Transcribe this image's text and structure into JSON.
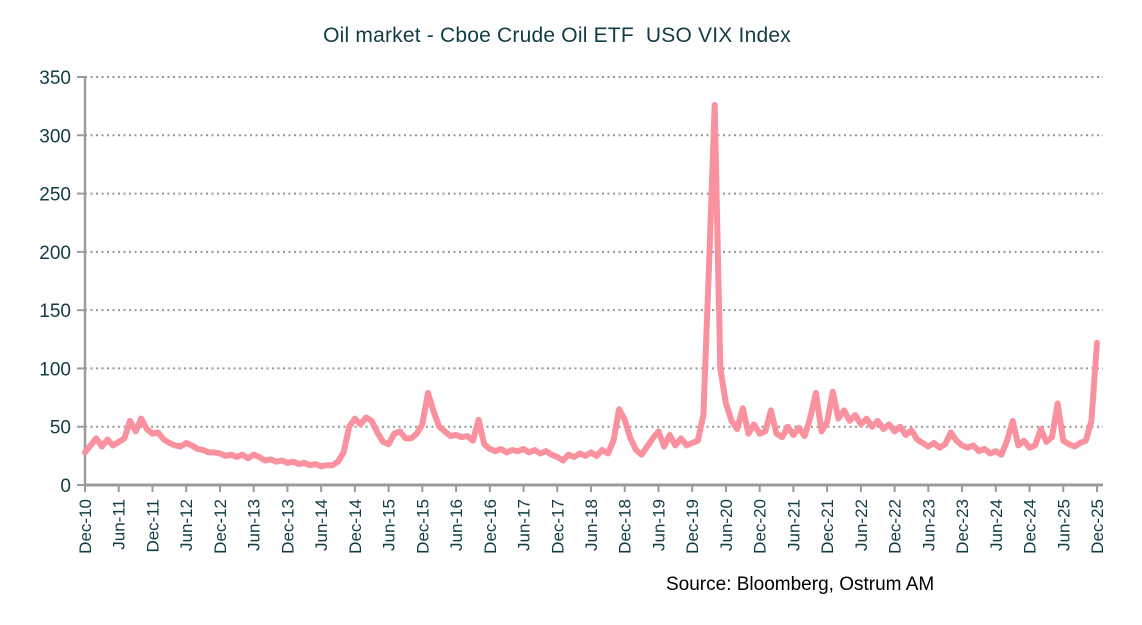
{
  "title": "Oil market - Cboe Crude Oil ETF  USO VIX Index",
  "source": "Source: Bloomberg, Ostrum AM",
  "colors": {
    "background": "#FFFFFF",
    "line": "#F9919F",
    "title_text": "#113C46",
    "axis_text": "#113C46",
    "grid": "#969696",
    "axis": "#9B9B9B",
    "source_text": "#000000"
  },
  "chart_data": {
    "type": "line",
    "title": "Oil market - Cboe Crude Oil ETF USO VIX Index",
    "xlabel": "",
    "ylabel": "",
    "ylim": [
      0,
      350
    ],
    "y_ticks": [
      0,
      50,
      100,
      150,
      200,
      250,
      300,
      350
    ],
    "grid": "horizontal dotted",
    "legend": "none",
    "x_tick_labels": [
      "Dec-10",
      "Jun-11",
      "Dec-11",
      "Jun-12",
      "Dec-12",
      "Jun-13",
      "Dec-13",
      "Jun-14",
      "Dec-14",
      "Jun-15",
      "Dec-15",
      "Jun-16",
      "Dec-16",
      "Jun-17",
      "Dec-17",
      "Jun-18",
      "Dec-18",
      "Jun-19",
      "Dec-19",
      "Jun-20",
      "Dec-20",
      "Jun-21",
      "Dec-21",
      "Jun-22",
      "Dec-22",
      "Jun-23",
      "Dec-23",
      "Jun-24",
      "Dec-24",
      "Jun-25",
      "Dec-25"
    ],
    "x_unit": "monthly samples from Dec-2010 to Dec-2025",
    "series": [
      {
        "name": "Cboe Crude Oil ETF USO VIX Index",
        "x_start": "Dec-2010",
        "x_step_months": 1,
        "values": [
          28,
          34,
          40,
          33,
          39,
          34,
          37,
          40,
          55,
          46,
          57,
          48,
          44,
          45,
          39,
          36,
          34,
          33,
          36,
          34,
          31,
          30,
          28,
          28,
          27,
          25,
          26,
          24,
          26,
          23,
          26,
          24,
          21,
          22,
          20,
          21,
          19,
          20,
          18,
          19,
          17,
          18,
          16,
          17,
          17,
          20,
          28,
          50,
          57,
          52,
          58,
          55,
          45,
          37,
          35,
          44,
          46,
          40,
          40,
          44,
          52,
          79,
          63,
          50,
          46,
          42,
          43,
          41,
          42,
          38,
          56,
          35,
          31,
          29,
          31,
          28,
          30,
          29,
          31,
          28,
          30,
          27,
          29,
          26,
          24,
          21,
          26,
          24,
          27,
          25,
          28,
          25,
          30,
          27,
          38,
          65,
          56,
          40,
          30,
          26,
          33,
          40,
          46,
          33,
          43,
          34,
          40,
          34,
          36,
          38,
          60,
          190,
          326,
          100,
          70,
          55,
          48,
          66,
          44,
          52,
          44,
          46,
          64,
          44,
          41,
          50,
          43,
          49,
          42,
          58,
          79,
          46,
          54,
          80,
          57,
          64,
          55,
          60,
          52,
          57,
          50,
          55,
          48,
          52,
          46,
          50,
          43,
          47,
          39,
          36,
          33,
          36,
          32,
          35,
          45,
          38,
          34,
          32,
          34,
          29,
          31,
          27,
          29,
          26,
          38,
          55,
          34,
          38,
          32,
          34,
          48,
          37,
          41,
          70,
          38,
          35,
          33,
          36,
          38,
          55,
          122
        ]
      }
    ],
    "annotations": {
      "peak_value": 326,
      "peak_date": "Apr-2020",
      "last_value": 122,
      "last_date": "Dec-2025"
    }
  }
}
